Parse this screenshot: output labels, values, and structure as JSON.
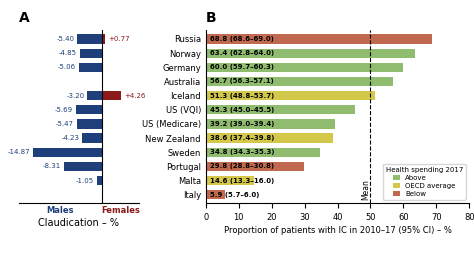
{
  "chart_data": [
    {
      "type": "bar",
      "orientation": "horizontal",
      "title": "A",
      "x_label": "Claudication – %",
      "categories": [
        null,
        null,
        null,
        null,
        null,
        null,
        null,
        null,
        null,
        null,
        null,
        null
      ],
      "series": [
        {
          "name": "Males",
          "color": "#1f3f7a",
          "values": [
            -5.4,
            -4.85,
            -5.06,
            0.0,
            -3.2,
            -5.69,
            -5.47,
            -4.23,
            -14.87,
            -8.31,
            -1.05,
            0.0
          ],
          "value_labels": [
            "-5.40",
            "-4.85",
            "-5.06",
            null,
            "-3.20",
            "-5.69",
            "-5.47",
            "-4.23",
            "-14.87",
            "-8.31",
            "-1.05",
            null
          ]
        },
        {
          "name": "Females",
          "color": "#8b1a1a",
          "values": [
            0.77,
            0.0,
            0.0,
            0.0,
            4.26,
            0.0,
            0.0,
            0.0,
            0.0,
            0.0,
            0.0,
            0.0
          ],
          "value_labels": [
            "+0.77",
            null,
            null,
            null,
            "+4.26",
            null,
            null,
            null,
            null,
            null,
            null,
            null
          ]
        }
      ],
      "data_labels": true,
      "tick_labels": false,
      "xlim": [
        -18,
        8
      ],
      "xticks": []
    },
    {
      "type": "bar",
      "orientation": "horizontal",
      "title": "B",
      "x_label": "Proportion of patients with IC in 2010–17 (95% CI) – %",
      "categories": [
        "Russia",
        "Norway",
        "Germany",
        "Australia",
        "Iceland",
        "US (VQI)",
        "US (Medicare)",
        "New Zealand",
        "Sweden",
        "Portugal",
        "Malta",
        "Italy"
      ],
      "values": [
        68.8,
        63.4,
        60.0,
        56.7,
        51.3,
        45.3,
        39.2,
        38.6,
        34.8,
        29.8,
        14.6,
        5.9
      ],
      "value_labels": [
        "68.8 (68.6–69.0)",
        "63.4 (62.8–64.0)",
        "60.0 (59.7–60.3)",
        "56.7 (56.3–57.1)",
        "51.3 (48.8–53.7)",
        "45.3 (45.0–45.5)",
        "39.2 (39.0–39.4)",
        "38.6 (37.4–39.8)",
        "34.8 (34.3–35.3)",
        "29.8 (28.8–30.8)",
        "14.6 (13.3–16.0)",
        "5.9 (5.7–6.0)"
      ],
      "colors": [
        "#c1694f",
        "#8fbc6e",
        "#8fbc6e",
        "#8fbc6e",
        "#d4c84a",
        "#8fbc6e",
        "#8fbc6e",
        "#d4c84a",
        "#8fbc6e",
        "#c1694f",
        "#d4c84a",
        "#c1694f"
      ],
      "data_labels": true,
      "mean_line": {
        "value": 50,
        "label": "Mean"
      },
      "xlim": [
        0,
        80
      ],
      "xticks": [
        0,
        10,
        20,
        30,
        40,
        50,
        60,
        70,
        80
      ],
      "legend": "lower right",
      "legend_title": "Health spending 2017",
      "legend_entries": [
        {
          "name": "Above",
          "color": "#8fbc6e"
        },
        {
          "name": "OECD average",
          "color": "#d4c84a"
        },
        {
          "name": "Below",
          "color": "#c1694f"
        }
      ]
    }
  ]
}
